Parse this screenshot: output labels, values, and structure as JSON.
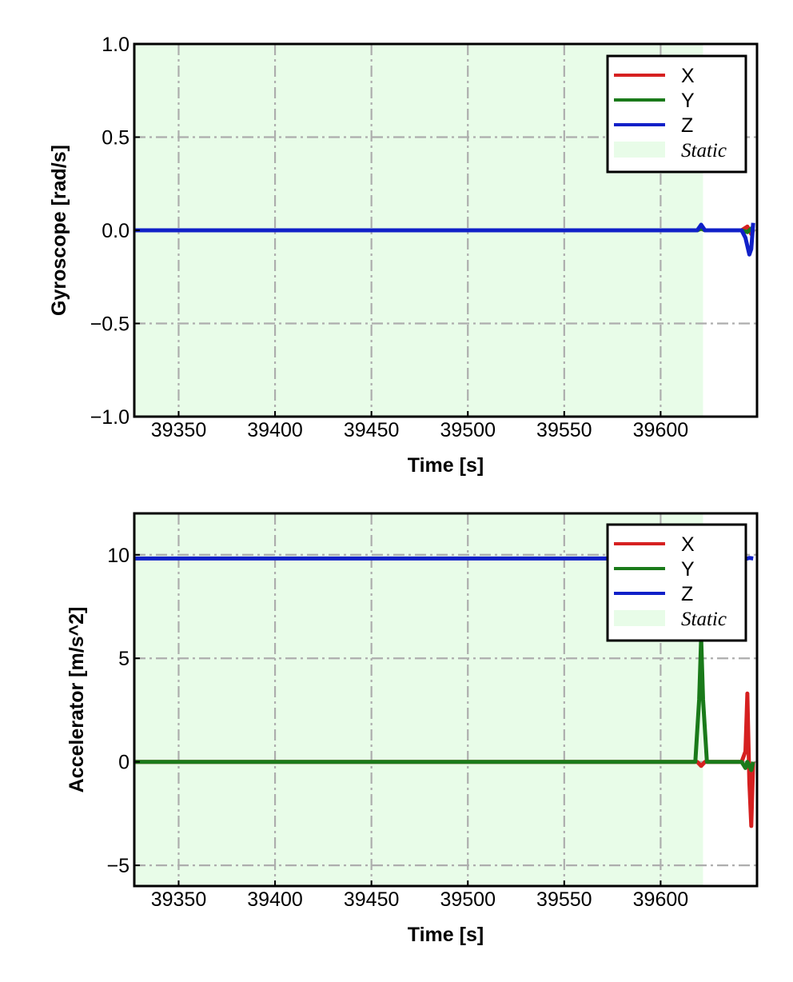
{
  "chart_data": [
    {
      "type": "line",
      "xlabel": "Time [s]",
      "ylabel": "Gyroscope [rad/s]",
      "xlim": [
        39327,
        39650
      ],
      "ylim": [
        -1.0,
        1.0
      ],
      "xticks": [
        39350,
        39400,
        39450,
        39500,
        39550,
        39600
      ],
      "xtick_labels": [
        "39350",
        "39400",
        "39450",
        "39500",
        "39550",
        "39600"
      ],
      "yticks": [
        -1.0,
        -0.5,
        0.0,
        0.5,
        1.0
      ],
      "ytick_labels": [
        "−1.0",
        "−0.5",
        "0.0",
        "0.5",
        "1.0"
      ],
      "grid": true,
      "legend_position": "top-right",
      "static_region": [
        39327,
        39622
      ],
      "static_label": "Static",
      "series": [
        {
          "name": "X",
          "color": "#d62020",
          "x": [
            39327,
            39619,
            39621,
            39623,
            39642,
            39645,
            39647,
            39648
          ],
          "y": [
            0.0,
            0.0,
            0.01,
            0.0,
            0.0,
            0.02,
            -0.02,
            0.0
          ]
        },
        {
          "name": "Y",
          "color": "#1a7a1a",
          "x": [
            39327,
            39619,
            39621,
            39623,
            39642,
            39645,
            39647,
            39648
          ],
          "y": [
            0.0,
            0.0,
            0.01,
            0.0,
            0.0,
            -0.01,
            0.01,
            0.0
          ]
        },
        {
          "name": "Z",
          "color": "#1020c8",
          "x": [
            39327,
            39619,
            39621,
            39623,
            39642,
            39644,
            39646,
            39647,
            39648
          ],
          "y": [
            0.0,
            0.0,
            0.03,
            0.0,
            0.0,
            -0.04,
            -0.13,
            -0.1,
            0.04
          ]
        }
      ]
    },
    {
      "type": "line",
      "xlabel": "Time [s]",
      "ylabel": "Accelerator [m/s^2]",
      "xlim": [
        39327,
        39650
      ],
      "ylim": [
        -6.0,
        12.0
      ],
      "xticks": [
        39350,
        39400,
        39450,
        39500,
        39550,
        39600
      ],
      "xtick_labels": [
        "39350",
        "39400",
        "39450",
        "39500",
        "39550",
        "39600"
      ],
      "yticks": [
        -5,
        0,
        5,
        10
      ],
      "ytick_labels": [
        "−5",
        "0",
        "5",
        "10"
      ],
      "grid": true,
      "legend_position": "top-right",
      "static_region": [
        39327,
        39622
      ],
      "static_label": "Static",
      "series": [
        {
          "name": "X",
          "color": "#d62020",
          "x": [
            39327,
            39619,
            39621,
            39623,
            39625,
            39642,
            39644,
            39645,
            39646,
            39647,
            39648
          ],
          "y": [
            0.0,
            0.0,
            -0.2,
            0.0,
            0.0,
            0.0,
            0.5,
            3.3,
            -1.0,
            -3.1,
            0.0
          ]
        },
        {
          "name": "Y",
          "color": "#1a7a1a",
          "x": [
            39327,
            39618,
            39620,
            39621,
            39622,
            39624,
            39626,
            39642,
            39644,
            39645,
            39647,
            39648
          ],
          "y": [
            0.0,
            0.0,
            3.0,
            6.0,
            3.0,
            0.0,
            0.0,
            0.0,
            -0.3,
            0.0,
            -0.4,
            0.0
          ]
        },
        {
          "name": "Z",
          "color": "#1020c8",
          "x": [
            39327,
            39619,
            39621,
            39623,
            39640,
            39642,
            39644,
            39646,
            39648
          ],
          "y": [
            9.82,
            9.82,
            9.85,
            9.81,
            9.82,
            9.82,
            9.8,
            9.85,
            9.82
          ]
        }
      ]
    }
  ]
}
